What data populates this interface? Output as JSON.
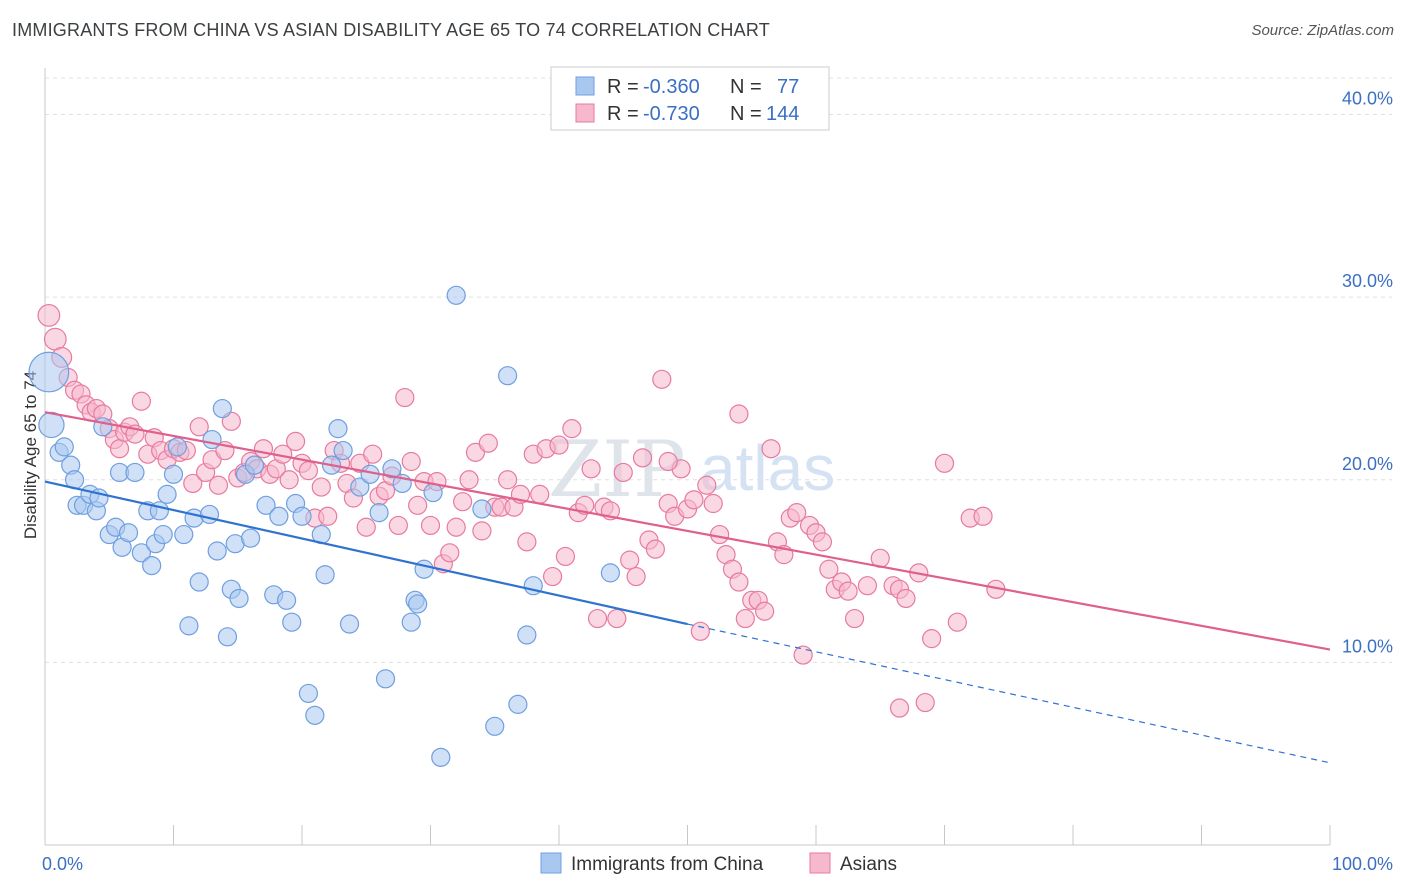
{
  "title": "IMMIGRANTS FROM CHINA VS ASIAN DISABILITY AGE 65 TO 74 CORRELATION CHART",
  "source": "Source: ZipAtlas.com",
  "watermark": {
    "zip": "ZIP",
    "atlas": "atlas"
  },
  "colors": {
    "blue": "#6f9fe0",
    "blue_fill": "#a9c8f0",
    "blue_line": "#2f72d0",
    "pink": "#e87aa0",
    "pink_fill": "#f6b8cc",
    "pink_line": "#e0608c",
    "tick": "#3a6fc4"
  },
  "legend": {
    "rows": [
      {
        "r_label": "R = ",
        "r_value": "-0.360",
        "n_label": "N = ",
        "n_value": " 77",
        "series": "blue"
      },
      {
        "r_label": "R = ",
        "r_value": "-0.730",
        "n_label": "N = ",
        "n_value": "144",
        "series": "pink"
      }
    ]
  },
  "bottom_legend": [
    {
      "label": "Immigrants from China",
      "series": "blue"
    },
    {
      "label": "Asians",
      "series": "pink"
    }
  ],
  "chart_data": {
    "type": "scatter",
    "xlabel": "",
    "ylabel": "Disability Age 65 to 74",
    "xlim": [
      0,
      100
    ],
    "ylim": [
      0,
      42
    ],
    "x_tick_labels": [
      {
        "value": 0,
        "label": "0.0%"
      },
      {
        "value": 100,
        "label": "100.0%"
      }
    ],
    "y_ticks": [
      {
        "value": 10,
        "label": "10.0%"
      },
      {
        "value": 20,
        "label": "20.0%"
      },
      {
        "value": 30,
        "label": "30.0%"
      },
      {
        "value": 40,
        "label": "40.0%"
      }
    ],
    "grid": true,
    "legend_position": "top-center",
    "series": [
      {
        "name": "Immigrants from China",
        "color": "blue",
        "trend": {
          "x0": 0,
          "y0": 19.9,
          "x1": 50,
          "y1": 12.1,
          "dash_to_x": 100,
          "dash_to_y": 4.5
        },
        "points": [
          [
            0.3,
            25.9,
            2.2
          ],
          [
            0.5,
            23,
            1.4
          ],
          [
            1.1,
            21.5,
            1
          ],
          [
            1.5,
            21.8,
            1
          ],
          [
            2.0,
            20.8,
            1
          ],
          [
            2.3,
            20.0,
            1
          ],
          [
            2.5,
            18.6,
            1
          ],
          [
            3.0,
            18.6,
            1
          ],
          [
            3.5,
            19.2,
            1
          ],
          [
            4.0,
            18.3,
            1
          ],
          [
            4.2,
            19.0,
            1
          ],
          [
            4.5,
            22.9,
            1
          ],
          [
            5.0,
            17.0,
            1
          ],
          [
            5.5,
            17.4,
            1
          ],
          [
            5.8,
            20.4,
            1
          ],
          [
            6.0,
            16.3,
            1
          ],
          [
            6.5,
            17.1,
            1
          ],
          [
            7.0,
            20.4,
            1
          ],
          [
            7.5,
            16.0,
            1
          ],
          [
            8.0,
            18.3,
            1
          ],
          [
            8.3,
            15.3,
            1
          ],
          [
            8.6,
            16.5,
            1
          ],
          [
            8.9,
            18.3,
            1
          ],
          [
            9.2,
            17.0,
            1
          ],
          [
            9.5,
            19.2,
            1
          ],
          [
            10.0,
            20.3,
            1
          ],
          [
            10.3,
            21.8,
            1
          ],
          [
            10.8,
            17.0,
            1
          ],
          [
            11.2,
            12.0,
            1
          ],
          [
            11.6,
            17.9,
            1
          ],
          [
            12.0,
            14.4,
            1
          ],
          [
            12.8,
            18.1,
            1
          ],
          [
            13.0,
            22.2,
            1
          ],
          [
            13.4,
            16.1,
            1
          ],
          [
            13.8,
            23.9,
            1
          ],
          [
            14.2,
            11.4,
            1
          ],
          [
            14.5,
            14.0,
            1
          ],
          [
            14.8,
            16.5,
            1
          ],
          [
            15.1,
            13.5,
            1
          ],
          [
            15.6,
            20.3,
            1
          ],
          [
            16.0,
            16.8,
            1
          ],
          [
            16.3,
            20.8,
            1
          ],
          [
            17.2,
            18.6,
            1
          ],
          [
            17.8,
            13.7,
            1
          ],
          [
            18.2,
            18.0,
            1
          ],
          [
            18.8,
            13.4,
            1
          ],
          [
            19.2,
            12.2,
            1
          ],
          [
            19.5,
            18.7,
            1
          ],
          [
            20.0,
            18.0,
            1
          ],
          [
            20.5,
            8.3,
            1
          ],
          [
            21.0,
            7.1,
            1
          ],
          [
            21.5,
            17.0,
            1
          ],
          [
            21.8,
            14.8,
            1
          ],
          [
            22.3,
            20.8,
            1
          ],
          [
            22.8,
            22.8,
            1
          ],
          [
            23.2,
            21.6,
            1
          ],
          [
            23.7,
            12.1,
            1
          ],
          [
            24.5,
            19.6,
            1
          ],
          [
            25.3,
            20.3,
            1
          ],
          [
            26.0,
            18.2,
            1
          ],
          [
            26.5,
            9.1,
            1
          ],
          [
            27.0,
            20.6,
            1
          ],
          [
            27.8,
            19.8,
            1
          ],
          [
            28.5,
            12.2,
            1
          ],
          [
            28.8,
            13.4,
            1
          ],
          [
            29.0,
            13.2,
            1
          ],
          [
            29.5,
            15.1,
            1
          ],
          [
            30.2,
            19.3,
            1
          ],
          [
            32.0,
            30.1,
            1
          ],
          [
            34.0,
            18.4,
            1
          ],
          [
            35.0,
            6.5,
            1
          ],
          [
            36.0,
            25.7,
            1
          ],
          [
            36.8,
            7.7,
            1
          ],
          [
            37.5,
            11.5,
            1
          ],
          [
            38.0,
            14.2,
            1
          ],
          [
            30.8,
            4.8,
            1
          ],
          [
            44.0,
            14.9,
            1
          ]
        ]
      },
      {
        "name": "Asians",
        "color": "pink",
        "trend": {
          "x0": 0,
          "y0": 23.7,
          "x1": 100,
          "y1": 10.7
        },
        "points": [
          [
            0.3,
            29.0,
            1.2
          ],
          [
            0.8,
            27.7,
            1.2
          ],
          [
            1.3,
            26.7,
            1.1
          ],
          [
            1.8,
            25.6,
            1
          ],
          [
            2.3,
            24.9,
            1
          ],
          [
            2.8,
            24.7,
            1
          ],
          [
            3.2,
            24.1,
            1
          ],
          [
            3.6,
            23.7,
            1
          ],
          [
            4.0,
            23.9,
            1
          ],
          [
            4.5,
            23.6,
            1
          ],
          [
            5.0,
            22.8,
            1
          ],
          [
            5.4,
            22.2,
            1
          ],
          [
            5.8,
            21.7,
            1
          ],
          [
            6.2,
            22.6,
            1
          ],
          [
            6.6,
            22.9,
            1
          ],
          [
            7.0,
            22.5,
            1
          ],
          [
            7.5,
            24.3,
            1
          ],
          [
            8.0,
            21.4,
            1
          ],
          [
            8.5,
            22.3,
            1
          ],
          [
            9.0,
            21.6,
            1
          ],
          [
            9.5,
            21.1,
            1
          ],
          [
            10.0,
            21.7,
            1
          ],
          [
            10.5,
            21.5,
            1
          ],
          [
            11.0,
            21.6,
            1
          ],
          [
            11.5,
            19.8,
            1
          ],
          [
            12.0,
            22.9,
            1
          ],
          [
            12.5,
            20.4,
            1
          ],
          [
            13.0,
            21.1,
            1
          ],
          [
            13.5,
            19.7,
            1
          ],
          [
            14.0,
            21.6,
            1
          ],
          [
            14.5,
            23.2,
            1
          ],
          [
            15.0,
            20.1,
            1
          ],
          [
            15.5,
            20.4,
            1
          ],
          [
            16.0,
            21.0,
            1
          ],
          [
            16.5,
            20.6,
            1
          ],
          [
            17.0,
            21.7,
            1
          ],
          [
            17.5,
            20.3,
            1
          ],
          [
            18.0,
            20.6,
            1
          ],
          [
            18.5,
            21.4,
            1
          ],
          [
            19.0,
            20.0,
            1
          ],
          [
            19.5,
            22.1,
            1
          ],
          [
            20.0,
            20.9,
            1
          ],
          [
            20.5,
            20.5,
            1
          ],
          [
            21.0,
            17.9,
            1
          ],
          [
            21.5,
            19.6,
            1
          ],
          [
            22.0,
            18.0,
            1
          ],
          [
            22.5,
            21.6,
            1
          ],
          [
            23.0,
            20.9,
            1
          ],
          [
            23.5,
            19.8,
            1
          ],
          [
            24.0,
            19.0,
            1
          ],
          [
            24.5,
            20.9,
            1
          ],
          [
            25.0,
            17.4,
            1
          ],
          [
            25.5,
            21.4,
            1
          ],
          [
            26.0,
            19.1,
            1
          ],
          [
            26.5,
            19.4,
            1
          ],
          [
            27.0,
            20.2,
            1
          ],
          [
            27.5,
            17.5,
            1
          ],
          [
            28.0,
            24.5,
            1
          ],
          [
            28.5,
            21.0,
            1
          ],
          [
            29.0,
            18.6,
            1
          ],
          [
            29.5,
            19.9,
            1
          ],
          [
            30.0,
            17.5,
            1
          ],
          [
            30.5,
            19.9,
            1
          ],
          [
            31.0,
            15.4,
            1
          ],
          [
            31.5,
            16.0,
            1
          ],
          [
            32.0,
            17.4,
            1
          ],
          [
            32.5,
            18.8,
            1
          ],
          [
            33.0,
            20.0,
            1
          ],
          [
            33.5,
            21.5,
            1
          ],
          [
            34.0,
            17.2,
            1
          ],
          [
            34.5,
            22.0,
            1
          ],
          [
            35.0,
            18.5,
            1
          ],
          [
            35.5,
            18.5,
            1
          ],
          [
            36.0,
            20.0,
            1
          ],
          [
            36.5,
            18.5,
            1
          ],
          [
            37.0,
            19.2,
            1
          ],
          [
            37.5,
            16.6,
            1
          ],
          [
            38.0,
            21.4,
            1
          ],
          [
            38.5,
            19.2,
            1
          ],
          [
            39.0,
            21.7,
            1
          ],
          [
            39.5,
            14.7,
            1
          ],
          [
            40.0,
            21.9,
            1
          ],
          [
            40.5,
            15.8,
            1
          ],
          [
            41.0,
            22.8,
            1
          ],
          [
            41.5,
            18.2,
            1
          ],
          [
            42.0,
            18.6,
            1
          ],
          [
            42.5,
            20.6,
            1
          ],
          [
            43.0,
            12.4,
            1
          ],
          [
            43.5,
            18.5,
            1
          ],
          [
            44.0,
            18.3,
            1
          ],
          [
            44.5,
            12.4,
            1
          ],
          [
            45.0,
            20.4,
            1
          ],
          [
            45.5,
            15.6,
            1
          ],
          [
            46.0,
            14.7,
            1
          ],
          [
            46.5,
            21.2,
            1
          ],
          [
            47.0,
            16.7,
            1
          ],
          [
            47.5,
            16.2,
            1
          ],
          [
            48.0,
            25.5,
            1
          ],
          [
            48.5,
            18.7,
            1
          ],
          [
            49.0,
            18.0,
            1
          ],
          [
            49.5,
            20.6,
            1
          ],
          [
            50.0,
            18.4,
            1
          ],
          [
            50.5,
            18.9,
            1
          ],
          [
            51.0,
            11.7,
            1
          ],
          [
            51.5,
            19.7,
            1
          ],
          [
            52.0,
            18.7,
            1
          ],
          [
            52.5,
            17.0,
            1
          ],
          [
            53.0,
            15.9,
            1
          ],
          [
            53.5,
            15.1,
            1
          ],
          [
            54.0,
            14.4,
            1
          ],
          [
            54.5,
            12.4,
            1
          ],
          [
            55.0,
            13.4,
            1
          ],
          [
            55.5,
            13.4,
            1
          ],
          [
            56.0,
            12.8,
            1
          ],
          [
            56.5,
            21.7,
            1
          ],
          [
            57.0,
            16.6,
            1
          ],
          [
            57.5,
            15.9,
            1
          ],
          [
            58.0,
            17.9,
            1
          ],
          [
            58.5,
            18.2,
            1
          ],
          [
            59.0,
            10.4,
            1
          ],
          [
            59.5,
            17.5,
            1
          ],
          [
            60.0,
            17.1,
            1
          ],
          [
            60.5,
            16.6,
            1
          ],
          [
            61.0,
            15.1,
            1
          ],
          [
            61.5,
            14.0,
            1
          ],
          [
            62.0,
            14.4,
            1
          ],
          [
            62.5,
            13.9,
            1
          ],
          [
            63.0,
            12.4,
            1
          ],
          [
            64.0,
            14.2,
            1
          ],
          [
            65.0,
            15.7,
            1
          ],
          [
            66.0,
            14.2,
            1
          ],
          [
            66.5,
            14.0,
            1
          ],
          [
            67.0,
            13.5,
            1
          ],
          [
            68.0,
            14.9,
            1
          ],
          [
            69.0,
            11.3,
            1
          ],
          [
            70.0,
            20.9,
            1
          ],
          [
            71.0,
            12.2,
            1
          ],
          [
            72.0,
            17.9,
            1
          ],
          [
            73.0,
            18.0,
            1
          ],
          [
            74.0,
            14.0,
            1
          ],
          [
            66.5,
            7.5,
            1
          ],
          [
            68.5,
            7.8,
            1
          ],
          [
            54.0,
            23.6,
            1
          ],
          [
            48.5,
            21.0,
            1
          ]
        ]
      }
    ]
  }
}
